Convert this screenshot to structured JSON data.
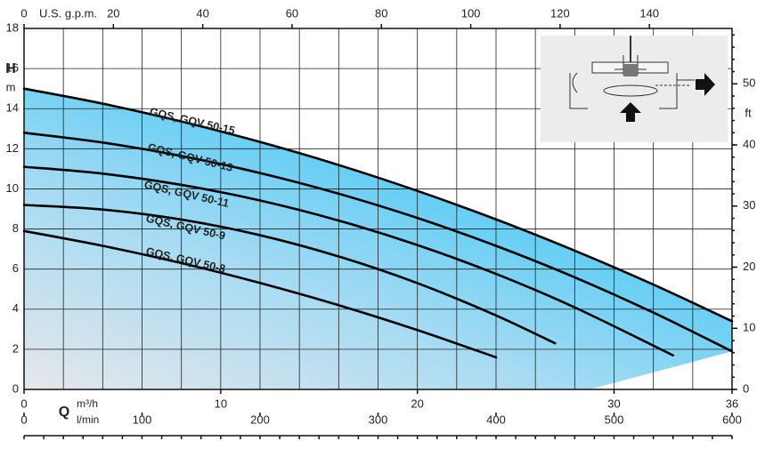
{
  "chart_data": {
    "type": "line",
    "x2_label": "U.S. g.p.m.",
    "x2lim": [
      0,
      158.5
    ],
    "x2ticks": [
      0,
      20,
      40,
      60,
      80,
      100,
      120,
      140
    ],
    "xlabel": "Q",
    "x_unit": "m³/h",
    "xlim": [
      0,
      36
    ],
    "xticks": [
      0,
      10,
      20,
      30,
      36
    ],
    "x3_unit": "l/min",
    "x3lim": [
      0,
      600
    ],
    "x3ticks": [
      0,
      100,
      200,
      300,
      400,
      500,
      600
    ],
    "ylabel": "H",
    "y_unit": "m",
    "ylim": [
      0,
      18
    ],
    "yticks": [
      0,
      2,
      4,
      6,
      8,
      10,
      12,
      14,
      16,
      18
    ],
    "y2_unit": "ft",
    "y2lim": [
      0,
      59.06
    ],
    "y2ticks": [
      0,
      10,
      20,
      30,
      40,
      50
    ],
    "grid": true,
    "grid_x": [
      0,
      2,
      4,
      6,
      8,
      10,
      12,
      14,
      16,
      18,
      20,
      22,
      24,
      26,
      28,
      30,
      32,
      34,
      36
    ],
    "area_colors": [
      "#e6e7ea",
      "#a6dbf3",
      "#34c4f4"
    ],
    "series": [
      {
        "name": "GQS, GQV 50-15",
        "color": "#000000",
        "x": [
          0,
          4,
          8,
          12,
          16,
          20,
          24,
          28,
          32,
          36
        ],
        "values": [
          15.0,
          14.25,
          13.36,
          12.34,
          11.19,
          9.9,
          8.48,
          6.92,
          5.23,
          3.4
        ]
      },
      {
        "name": "GQS, GQV 50-13",
        "color": "#000000",
        "x": [
          0,
          4,
          8,
          12,
          16,
          20,
          24,
          28,
          32,
          36
        ],
        "values": [
          12.8,
          12.31,
          11.64,
          10.79,
          9.76,
          8.55,
          7.16,
          5.59,
          3.83,
          1.9
        ]
      },
      {
        "name": "GQS, GQV 50-11",
        "color": "#000000",
        "x": [
          0,
          4,
          8,
          12,
          16,
          20,
          24,
          28,
          33
        ],
        "values": [
          11.1,
          10.76,
          10.2,
          9.42,
          8.42,
          7.2,
          5.76,
          4.09,
          1.7
        ]
      },
      {
        "name": "GQS, GQV 50-9",
        "color": "#000000",
        "x": [
          0,
          4,
          8,
          12,
          16,
          20,
          24,
          27
        ],
        "values": [
          9.2,
          8.97,
          8.47,
          7.69,
          6.63,
          5.3,
          3.69,
          2.3
        ]
      },
      {
        "name": "GQS, GQV 50-8",
        "color": "#000000",
        "x": [
          0,
          4,
          8,
          12,
          16,
          20,
          24
        ],
        "values": [
          7.9,
          7.16,
          6.3,
          5.31,
          4.2,
          2.96,
          1.6
        ]
      }
    ]
  }
}
